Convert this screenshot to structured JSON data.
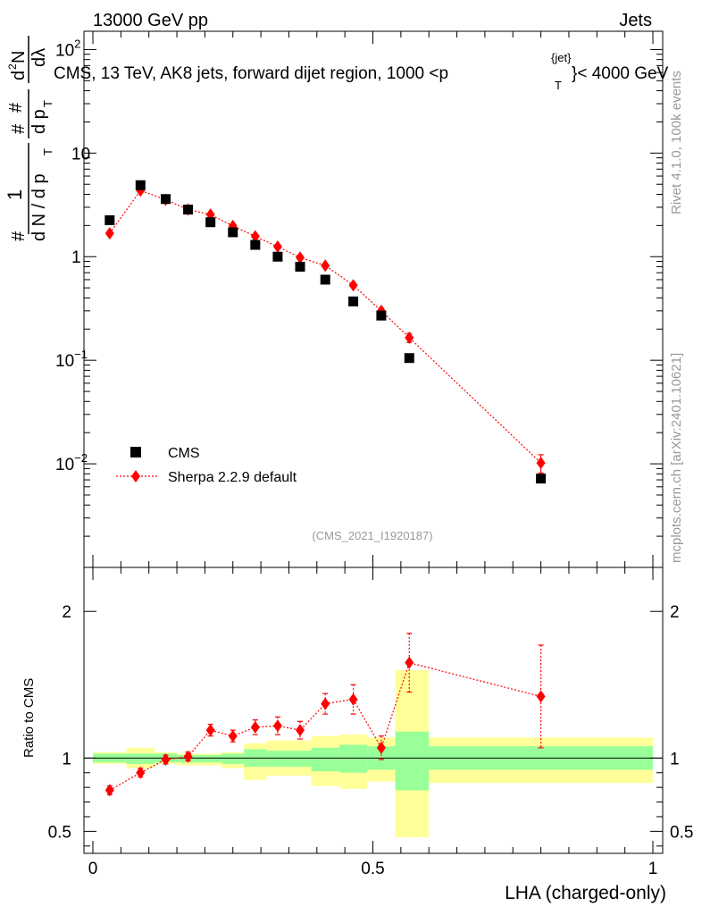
{
  "header": {
    "beam": "13000 GeV pp",
    "process": "Jets",
    "title": "CMS, 13 TeV, AK8 jets, forward dijet region, 1000 <p",
    "title_sup": "{jet}",
    "title_sub": "T",
    "title_end": "}< 4000 GeV"
  },
  "side": {
    "rivet": "Rivet 4.1.0,  100k events",
    "mcplots": "mcplots.cern.ch [arXiv:2401.10621]"
  },
  "analysis_id": "(CMS_2021_I1920187)",
  "ylabel_main": {
    "hash1": "#",
    "frac1_num": "1",
    "frac1_den": "d N / d p",
    "frac1_sub": "T",
    "hash2": "#",
    "frac2_num": "d p",
    "frac2_sub": "T",
    "frac2_den": "#",
    "deriv_num_d": "d",
    "deriv_num_sup": "2",
    "deriv_num_N": "N",
    "deriv_den": "dλ"
  },
  "ylabel_ratio": "Ratio to CMS",
  "xlabel": "LHA (charged-only)",
  "colors": {
    "data": "#000000",
    "mc": "#ff0000",
    "band_outer": "#ffff99",
    "band_inner": "#99ff99"
  },
  "chart_data": [
    {
      "type": "scatter",
      "name": "main",
      "yscale": "log",
      "xlim": [
        0,
        1
      ],
      "ylim": [
        0.001,
        150
      ],
      "yticks": [
        {
          "value": 0.01,
          "base": "10",
          "exp": "−2"
        },
        {
          "value": 0.1,
          "base": "10",
          "exp": "−1"
        },
        {
          "value": 1,
          "base": "1",
          "exp": ""
        },
        {
          "value": 10,
          "base": "10",
          "exp": ""
        },
        {
          "value": 100,
          "base": "10",
          "exp": "2"
        }
      ],
      "legend": {
        "position": "bottom-left",
        "entries": [
          "CMS",
          "Sherpa 2.2.9 default"
        ]
      },
      "series": [
        {
          "name": "CMS",
          "x": [
            0.03,
            0.085,
            0.13,
            0.17,
            0.21,
            0.25,
            0.29,
            0.33,
            0.37,
            0.415,
            0.465,
            0.515,
            0.565,
            0.8
          ],
          "y": [
            2.25,
            4.9,
            3.6,
            2.85,
            2.15,
            1.72,
            1.3,
            1.0,
            0.8,
            0.6,
            0.37,
            0.27,
            0.105,
            0.0072
          ]
        },
        {
          "name": "Sherpa 2.2.9 default",
          "x": [
            0.03,
            0.085,
            0.13,
            0.17,
            0.21,
            0.25,
            0.29,
            0.33,
            0.37,
            0.415,
            0.465,
            0.515,
            0.565,
            0.8
          ],
          "y": [
            1.68,
            4.35,
            3.55,
            2.85,
            2.55,
            1.98,
            1.57,
            1.25,
            0.98,
            0.82,
            0.53,
            0.3,
            0.165,
            0.0102
          ],
          "yerr_frac": [
            0.05,
            0.03,
            0.03,
            0.03,
            0.03,
            0.03,
            0.03,
            0.04,
            0.04,
            0.04,
            0.05,
            0.06,
            0.1,
            0.2
          ]
        }
      ]
    },
    {
      "type": "scatter",
      "name": "ratio",
      "xlim": [
        0,
        1
      ],
      "ylim": [
        0.35,
        2.3
      ],
      "yticks": [
        0.5,
        1,
        2
      ],
      "xticks": [
        {
          "value": 0,
          "label": "0"
        },
        {
          "value": 0.5,
          "label": "0.5"
        },
        {
          "value": 1,
          "label": "1"
        }
      ],
      "bins": [
        {
          "lo": 0.0,
          "hi": 0.06,
          "inner": [
            0.97,
            1.03
          ],
          "outer": [
            0.96,
            1.04
          ]
        },
        {
          "lo": 0.06,
          "hi": 0.11,
          "inner": [
            0.96,
            1.03
          ],
          "outer": [
            0.93,
            1.07
          ]
        },
        {
          "lo": 0.11,
          "hi": 0.15,
          "inner": [
            0.97,
            1.03
          ],
          "outer": [
            0.96,
            1.04
          ]
        },
        {
          "lo": 0.15,
          "hi": 0.19,
          "inner": [
            0.97,
            1.02
          ],
          "outer": [
            0.95,
            1.03
          ]
        },
        {
          "lo": 0.19,
          "hi": 0.23,
          "inner": [
            0.97,
            1.02
          ],
          "outer": [
            0.95,
            1.03
          ]
        },
        {
          "lo": 0.23,
          "hi": 0.27,
          "inner": [
            0.96,
            1.03
          ],
          "outer": [
            0.93,
            1.04
          ]
        },
        {
          "lo": 0.27,
          "hi": 0.31,
          "inner": [
            0.94,
            1.06
          ],
          "outer": [
            0.85,
            1.1
          ]
        },
        {
          "lo": 0.31,
          "hi": 0.35,
          "inner": [
            0.94,
            1.05
          ],
          "outer": [
            0.88,
            1.12
          ]
        },
        {
          "lo": 0.35,
          "hi": 0.39,
          "inner": [
            0.94,
            1.05
          ],
          "outer": [
            0.88,
            1.12
          ]
        },
        {
          "lo": 0.39,
          "hi": 0.44,
          "inner": [
            0.91,
            1.07
          ],
          "outer": [
            0.81,
            1.15
          ]
        },
        {
          "lo": 0.44,
          "hi": 0.49,
          "inner": [
            0.9,
            1.09
          ],
          "outer": [
            0.79,
            1.16
          ]
        },
        {
          "lo": 0.49,
          "hi": 0.54,
          "inner": [
            0.92,
            1.08
          ],
          "outer": [
            0.84,
            1.14
          ]
        },
        {
          "lo": 0.54,
          "hi": 0.6,
          "inner": [
            0.78,
            1.18
          ],
          "outer": [
            0.46,
            1.6
          ]
        },
        {
          "lo": 0.6,
          "hi": 1.0,
          "inner": [
            0.92,
            1.08
          ],
          "outer": [
            0.83,
            1.14
          ]
        }
      ],
      "series": [
        {
          "name": "Sherpa 2.2.9 default / CMS",
          "x": [
            0.03,
            0.085,
            0.13,
            0.17,
            0.21,
            0.25,
            0.29,
            0.33,
            0.37,
            0.415,
            0.465,
            0.515,
            0.565,
            0.8
          ],
          "y": [
            0.78,
            0.9,
            0.99,
            1.01,
            1.19,
            1.15,
            1.21,
            1.22,
            1.19,
            1.37,
            1.4,
            1.07,
            1.65,
            1.42
          ],
          "yerr": [
            0.03,
            0.03,
            0.03,
            0.03,
            0.04,
            0.04,
            0.05,
            0.06,
            0.06,
            0.07,
            0.1,
            0.08,
            0.2,
            0.35
          ]
        }
      ]
    }
  ]
}
